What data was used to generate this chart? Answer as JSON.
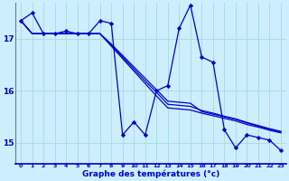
{
  "xlabel": "Graphe des températures (°c)",
  "bg_color": "#cceeff",
  "grid_color": "#aadddd",
  "line_color": "#0000cc",
  "ylim": [
    14.6,
    17.7
  ],
  "yticks": [
    15,
    16,
    17
  ],
  "xlim": [
    -0.5,
    23.5
  ],
  "series1_x": [
    0,
    1,
    2,
    3,
    4,
    5,
    6,
    7,
    8,
    9,
    10,
    11,
    12,
    13,
    14,
    15,
    16,
    17,
    18,
    19,
    20,
    21,
    22,
    23
  ],
  "series1_y": [
    17.35,
    17.5,
    17.1,
    17.1,
    17.15,
    17.1,
    17.1,
    17.35,
    17.3,
    15.15,
    15.4,
    15.15,
    16.0,
    16.1,
    17.2,
    17.65,
    16.65,
    16.55,
    15.25,
    14.9,
    15.15,
    15.1,
    15.05,
    14.85
  ],
  "series2_x": [
    0,
    1,
    2,
    3,
    4,
    5,
    6,
    7,
    8,
    9,
    10,
    11,
    12,
    13,
    14,
    15,
    16,
    17,
    18,
    19,
    20,
    21,
    22,
    23
  ],
  "series2_y": [
    17.35,
    17.1,
    17.1,
    17.1,
    17.1,
    17.1,
    17.1,
    17.1,
    16.9,
    16.68,
    16.46,
    16.24,
    16.02,
    15.8,
    15.78,
    15.76,
    15.6,
    15.55,
    15.5,
    15.45,
    15.38,
    15.32,
    15.26,
    15.2
  ],
  "series3_x": [
    0,
    1,
    2,
    3,
    4,
    5,
    6,
    7,
    8,
    9,
    10,
    11,
    12,
    13,
    14,
    15,
    16,
    17,
    18,
    19,
    20,
    21,
    22,
    23
  ],
  "series3_y": [
    17.35,
    17.1,
    17.1,
    17.1,
    17.1,
    17.1,
    17.1,
    17.1,
    16.88,
    16.65,
    16.42,
    16.19,
    15.97,
    15.74,
    15.72,
    15.7,
    15.62,
    15.57,
    15.51,
    15.46,
    15.39,
    15.33,
    15.27,
    15.22
  ],
  "series4_x": [
    0,
    1,
    2,
    3,
    4,
    5,
    6,
    7,
    8,
    9,
    10,
    11,
    12,
    13,
    14,
    15,
    16,
    17,
    18,
    19,
    20,
    21,
    22,
    23
  ],
  "series4_y": [
    17.35,
    17.1,
    17.1,
    17.1,
    17.1,
    17.1,
    17.1,
    17.1,
    16.86,
    16.62,
    16.38,
    16.14,
    15.9,
    15.67,
    15.65,
    15.63,
    15.57,
    15.52,
    15.47,
    15.42,
    15.35,
    15.3,
    15.24,
    15.19
  ]
}
